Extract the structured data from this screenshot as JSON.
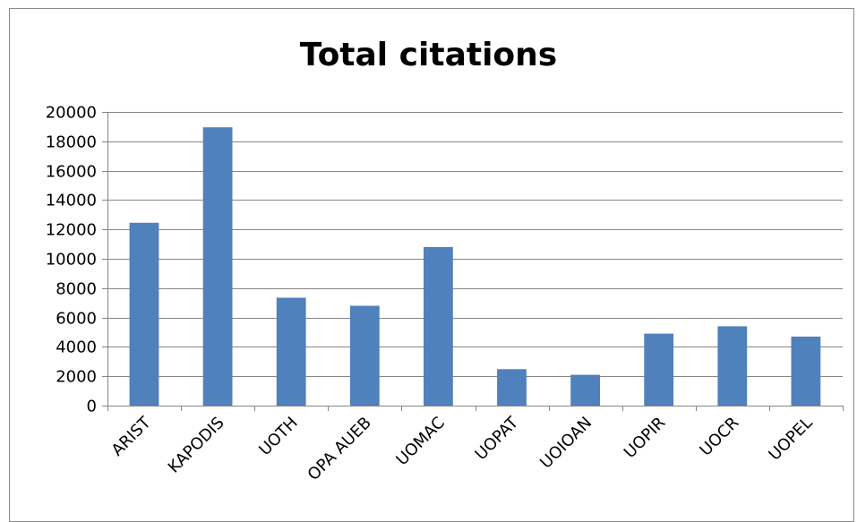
{
  "chart_data": {
    "type": "bar",
    "title": "Total citations",
    "xlabel": "",
    "ylabel": "",
    "categories": [
      "ARIST",
      "KAPODIS",
      "UOTH",
      "OPA AUEB",
      "UOMAC",
      "UOPAT",
      "UOIOAN",
      "UOPIR",
      "UOCR",
      "UOPEL"
    ],
    "values": [
      12450,
      18950,
      7350,
      6800,
      10800,
      2480,
      2100,
      4900,
      5400,
      4700
    ],
    "ylim": [
      0,
      20000
    ],
    "yticks": [
      0,
      2000,
      4000,
      6000,
      8000,
      10000,
      12000,
      14000,
      16000,
      18000,
      20000
    ],
    "grid": true,
    "legend": "none",
    "bar_color": "#4f81bd",
    "gridline_color": "#868686"
  }
}
